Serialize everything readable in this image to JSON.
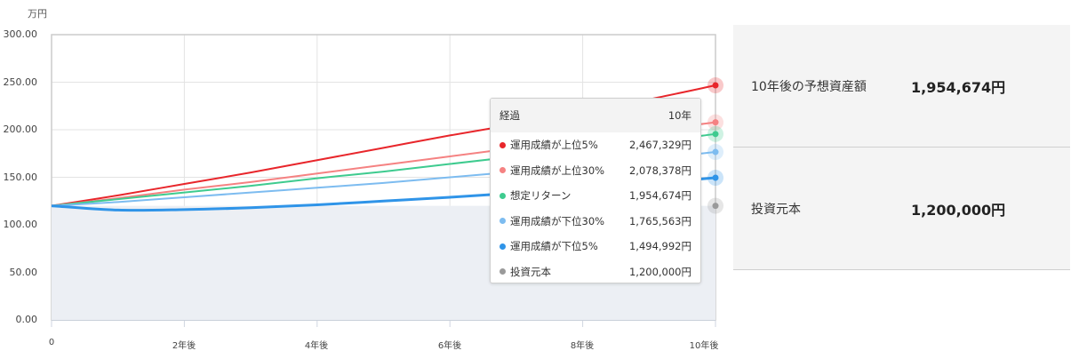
{
  "chart_data": {
    "type": "line",
    "title": "",
    "ylabel": "万円",
    "xlabel": "",
    "ylim": [
      0,
      300
    ],
    "xlim": [
      0,
      10
    ],
    "grid": true,
    "y_ticks": [
      "300.00",
      "250.00",
      "200.00",
      "150.00",
      "100.00",
      "50.00",
      "0.00"
    ],
    "x_ticks": [
      "0",
      "2年後",
      "4年後",
      "6年後",
      "8年後",
      "10年後"
    ],
    "x": [
      0,
      1,
      2,
      3,
      4,
      5,
      6,
      7,
      8,
      9,
      10
    ],
    "series": [
      {
        "name": "運用成績が上位5%",
        "color": "#e8262b",
        "width": 2,
        "values": [
          120,
          131,
          143,
          155,
          168,
          181,
          194,
          206,
          219,
          232,
          246.7
        ]
      },
      {
        "name": "運用成績が上位30%",
        "color": "#f58282",
        "width": 2,
        "values": [
          120,
          128,
          137,
          145,
          154,
          163,
          172,
          181,
          190,
          199,
          207.8
        ]
      },
      {
        "name": "想定リターン",
        "color": "#3ecb8f",
        "width": 2,
        "values": [
          120,
          127,
          134,
          141,
          149,
          156,
          164,
          172,
          180,
          187,
          195.5
        ]
      },
      {
        "name": "運用成績が下位30%",
        "color": "#7dbcf0",
        "width": 2,
        "values": [
          120,
          124,
          129,
          134,
          139,
          144,
          150,
          156,
          162,
          169,
          176.6
        ]
      },
      {
        "name": "運用成績が下位5%",
        "color": "#2f94e8",
        "width": 3,
        "values": [
          120,
          115.5,
          116,
          118,
          121,
          125,
          129,
          133.5,
          138,
          143.5,
          149.5
        ]
      },
      {
        "name": "投資元本",
        "color": "#9a9a9a",
        "width": 0,
        "fill": "#eceff4",
        "values": [
          120,
          120,
          120,
          120,
          120,
          120,
          120,
          120,
          120,
          120,
          120
        ]
      }
    ]
  },
  "chart": {
    "unit": "万円",
    "y_ticks": [
      "300.00",
      "250.00",
      "200.00",
      "150.00",
      "100.00",
      "50.00",
      "0.00"
    ],
    "x_ticks": [
      "0",
      "2年後",
      "4年後",
      "6年後",
      "8年後",
      "10年後"
    ]
  },
  "tooltip": {
    "header_label": "経過",
    "header_value": "10年",
    "rows": [
      {
        "name": "運用成績が上位5%",
        "value": "2,467,329円",
        "color": "#e8262b"
      },
      {
        "name": "運用成績が上位30%",
        "value": "2,078,378円",
        "color": "#f58282"
      },
      {
        "name": "想定リターン",
        "value": "1,954,674円",
        "color": "#3ecb8f"
      },
      {
        "name": "運用成績が下位30%",
        "value": "1,765,563円",
        "color": "#7dbcf0"
      },
      {
        "name": "運用成績が下位5%",
        "value": "1,494,992円",
        "color": "#2f94e8"
      },
      {
        "name": "投資元本",
        "value": "1,200,000円",
        "color": "#9a9a9a"
      }
    ]
  },
  "summary": {
    "rows": [
      {
        "label": "10年後の予想資産額",
        "value": "1,954,674円"
      },
      {
        "label": "投資元本",
        "value": "1,200,000円"
      }
    ]
  }
}
